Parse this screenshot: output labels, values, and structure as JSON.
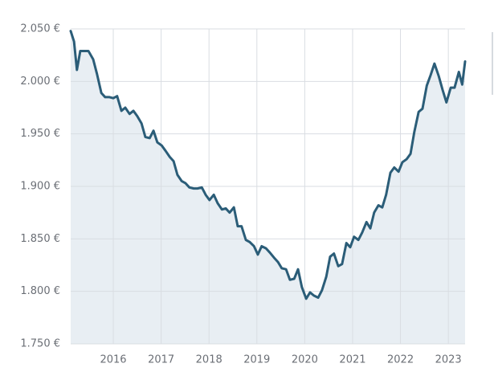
{
  "chart_data": {
    "type": "area-line",
    "color": "#2b5d78",
    "fill": "#e8eef3",
    "grid": true,
    "xlim": [
      2015.11,
      2023.35
    ],
    "xticks": [
      2016,
      2017,
      2018,
      2019,
      2020,
      2021,
      2022,
      2023
    ],
    "ylim": [
      1750,
      2050
    ],
    "yticks": [
      {
        "value": 1750,
        "label": "1.750 €"
      },
      {
        "value": 1800,
        "label": "1.800 €"
      },
      {
        "value": 1850,
        "label": "1.850 €"
      },
      {
        "value": 1900,
        "label": "1.900 €"
      },
      {
        "value": 1950,
        "label": "1.950 €"
      },
      {
        "value": 2000,
        "label": "2.000 €"
      },
      {
        "value": 2050,
        "label": "2.050 €"
      }
    ],
    "x": [
      2015.11,
      2015.18,
      2015.24,
      2015.31,
      2015.48,
      2015.58,
      2015.66,
      2015.75,
      2015.83,
      2015.92,
      2016.0,
      2016.08,
      2016.17,
      2016.25,
      2016.34,
      2016.42,
      2016.5,
      2016.59,
      2016.67,
      2016.76,
      2016.84,
      2016.92,
      2017.01,
      2017.09,
      2017.18,
      2017.26,
      2017.34,
      2017.43,
      2017.51,
      2017.59,
      2017.68,
      2017.76,
      2017.85,
      2017.93,
      2018.01,
      2018.1,
      2018.18,
      2018.27,
      2018.35,
      2018.43,
      2018.52,
      2018.6,
      2018.68,
      2018.77,
      2018.85,
      2018.94,
      2019.02,
      2019.1,
      2019.19,
      2019.27,
      2019.36,
      2019.44,
      2019.52,
      2019.61,
      2019.69,
      2019.78,
      2019.86,
      2019.94,
      2020.03,
      2020.11,
      2020.19,
      2020.28,
      2020.36,
      2020.45,
      2020.53,
      2020.61,
      2020.7,
      2020.78,
      2020.87,
      2020.95,
      2021.03,
      2021.12,
      2021.2,
      2021.29,
      2021.37,
      2021.45,
      2021.54,
      2021.62,
      2021.7,
      2021.79,
      2021.87,
      2021.96,
      2022.04,
      2022.13,
      2022.21,
      2022.29,
      2022.38,
      2022.46,
      2022.55,
      2022.63,
      2022.71,
      2022.8,
      2022.88,
      2022.96,
      2023.05,
      2023.13,
      2023.22,
      2023.29,
      2023.35
    ],
    "values": [
      2048,
      2038,
      2011,
      2029,
      2029,
      2021,
      2007,
      1989,
      1985,
      1985,
      1984,
      1986,
      1972,
      1975,
      1969,
      1972,
      1967,
      1960,
      1947,
      1946,
      1953,
      1942,
      1939,
      1934,
      1928,
      1924,
      1911,
      1905,
      1903,
      1899,
      1898,
      1898,
      1899,
      1892,
      1887,
      1892,
      1884,
      1878,
      1879,
      1875,
      1880,
      1862,
      1862,
      1849,
      1847,
      1843,
      1835,
      1843,
      1841,
      1837,
      1832,
      1828,
      1822,
      1821,
      1811,
      1812,
      1821,
      1804,
      1793,
      1799,
      1796,
      1794,
      1801,
      1814,
      1833,
      1836,
      1824,
      1826,
      1846,
      1842,
      1852,
      1849,
      1856,
      1866,
      1860,
      1875,
      1882,
      1880,
      1892,
      1913,
      1918,
      1914,
      1923,
      1926,
      1931,
      1952,
      1971,
      1974,
      1996,
      2006,
      2017,
      2005,
      1992,
      1980,
      1994,
      1994,
      2009,
      1997,
      2019
    ]
  }
}
